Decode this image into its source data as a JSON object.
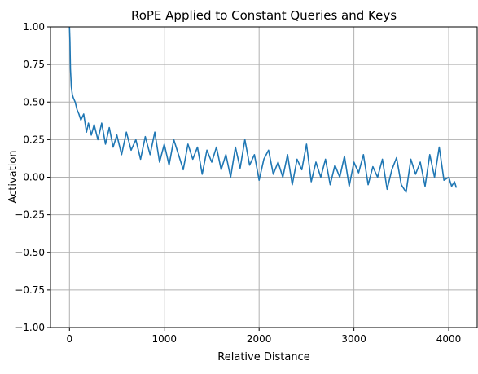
{
  "chart_data": {
    "type": "line",
    "title": "RoPE Applied to Constant Queries and Keys",
    "xlabel": "Relative Distance",
    "ylabel": "Activation",
    "xlim": [
      -200,
      4300
    ],
    "ylim": [
      -1.0,
      1.0
    ],
    "grid": true,
    "legend": "none",
    "xticks": [
      {
        "value": 0,
        "label": "0"
      },
      {
        "value": 1000,
        "label": "1000"
      },
      {
        "value": 2000,
        "label": "2000"
      },
      {
        "value": 3000,
        "label": "3000"
      },
      {
        "value": 4000,
        "label": "4000"
      }
    ],
    "yticks": [
      {
        "value": -1.0,
        "label": "−1.00"
      },
      {
        "value": -0.75,
        "label": "−0.75"
      },
      {
        "value": -0.5,
        "label": "−0.50"
      },
      {
        "value": -0.25,
        "label": "−0.25"
      },
      {
        "value": 0.0,
        "label": "0.00"
      },
      {
        "value": 0.25,
        "label": "0.25"
      },
      {
        "value": 0.5,
        "label": "0.50"
      },
      {
        "value": 0.75,
        "label": "0.75"
      },
      {
        "value": 1.0,
        "label": "1.00"
      }
    ],
    "series": [
      {
        "color": "#1f77b4",
        "x": [
          0,
          5,
          10,
          20,
          30,
          40,
          60,
          80,
          100,
          120,
          150,
          180,
          200,
          230,
          260,
          300,
          340,
          380,
          420,
          460,
          500,
          550,
          600,
          650,
          700,
          750,
          800,
          850,
          900,
          950,
          1000,
          1050,
          1100,
          1150,
          1200,
          1250,
          1300,
          1350,
          1400,
          1450,
          1500,
          1550,
          1600,
          1650,
          1700,
          1750,
          1800,
          1850,
          1900,
          1950,
          2000,
          2050,
          2100,
          2150,
          2200,
          2250,
          2300,
          2350,
          2400,
          2450,
          2500,
          2550,
          2600,
          2650,
          2700,
          2750,
          2800,
          2850,
          2900,
          2950,
          3000,
          3050,
          3100,
          3150,
          3200,
          3250,
          3300,
          3350,
          3400,
          3450,
          3500,
          3550,
          3600,
          3650,
          3700,
          3750,
          3800,
          3850,
          3900,
          3950,
          4000,
          4030,
          4060,
          4080
        ],
        "y": [
          1.0,
          0.9,
          0.72,
          0.6,
          0.55,
          0.53,
          0.5,
          0.45,
          0.42,
          0.38,
          0.42,
          0.3,
          0.36,
          0.28,
          0.35,
          0.25,
          0.36,
          0.22,
          0.33,
          0.2,
          0.28,
          0.15,
          0.3,
          0.18,
          0.25,
          0.12,
          0.27,
          0.15,
          0.3,
          0.1,
          0.22,
          0.08,
          0.25,
          0.15,
          0.05,
          0.22,
          0.12,
          0.2,
          0.02,
          0.18,
          0.1,
          0.2,
          0.05,
          0.15,
          0.0,
          0.2,
          0.06,
          0.25,
          0.08,
          0.15,
          -0.02,
          0.12,
          0.18,
          0.02,
          0.1,
          0.0,
          0.15,
          -0.05,
          0.12,
          0.05,
          0.22,
          -0.03,
          0.1,
          0.0,
          0.12,
          -0.05,
          0.08,
          0.0,
          0.14,
          -0.06,
          0.1,
          0.03,
          0.15,
          -0.05,
          0.07,
          0.0,
          0.12,
          -0.08,
          0.05,
          0.13,
          -0.05,
          -0.1,
          0.12,
          0.02,
          0.1,
          -0.06,
          0.15,
          0.0,
          0.2,
          -0.02,
          0.0,
          -0.06,
          -0.03,
          -0.07
        ]
      }
    ]
  }
}
